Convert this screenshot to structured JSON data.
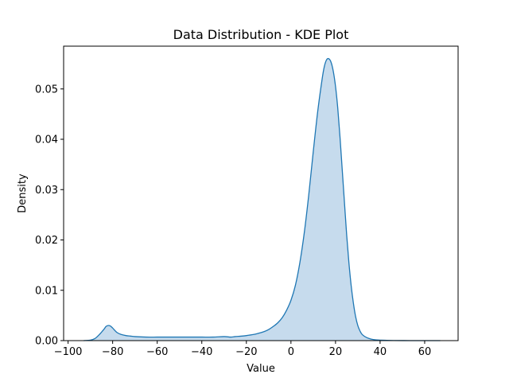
{
  "chart_data": {
    "type": "area",
    "title": "Data Distribution - KDE Plot",
    "xlabel": "Value",
    "ylabel": "Density",
    "xlim": [
      -102,
      75
    ],
    "ylim": [
      0,
      0.0585
    ],
    "xticks": [
      -100,
      -80,
      -60,
      -40,
      -20,
      0,
      20,
      40,
      60
    ],
    "xtick_labels": [
      "−100",
      "−80",
      "−60",
      "−40",
      "−20",
      "0",
      "20",
      "40",
      "60"
    ],
    "yticks": [
      0,
      0.01,
      0.02,
      0.03,
      0.04,
      0.05
    ],
    "ytick_labels": [
      "0.00",
      "0.01",
      "0.02",
      "0.03",
      "0.04",
      "0.05"
    ],
    "grid": false,
    "series": [
      {
        "line_color": "#1f77b4",
        "fill_color": "#c6dbed",
        "x": [
          -93,
          -90,
          -88,
          -86,
          -84,
          -83,
          -82,
          -81,
          -80,
          -78,
          -76,
          -74,
          -72,
          -70,
          -65,
          -60,
          -55,
          -50,
          -45,
          -40,
          -35,
          -30,
          -27,
          -25,
          -22,
          -20,
          -17,
          -15,
          -12,
          -10,
          -8,
          -6,
          -4,
          -2,
          0,
          2,
          4,
          6,
          8,
          10,
          12,
          14,
          15,
          16,
          17,
          18,
          19,
          20,
          21,
          22,
          23,
          24,
          25,
          26,
          27,
          28,
          29,
          30,
          31,
          32,
          34,
          36,
          38,
          40,
          43,
          46,
          50,
          55,
          60,
          67
        ],
        "y": [
          0.0,
          0.0001,
          0.0004,
          0.0012,
          0.0022,
          0.0028,
          0.003,
          0.0029,
          0.0025,
          0.0016,
          0.0012,
          0.001,
          0.0009,
          0.0008,
          0.0007,
          0.0007,
          0.0007,
          0.0007,
          0.0007,
          0.0007,
          0.0007,
          0.0008,
          0.0007,
          0.0008,
          0.0009,
          0.001,
          0.0012,
          0.0014,
          0.0018,
          0.0022,
          0.0028,
          0.0035,
          0.0045,
          0.006,
          0.008,
          0.011,
          0.0155,
          0.0215,
          0.029,
          0.0375,
          0.0455,
          0.052,
          0.0545,
          0.0558,
          0.056,
          0.0553,
          0.0535,
          0.0505,
          0.0462,
          0.0405,
          0.034,
          0.0275,
          0.021,
          0.0155,
          0.011,
          0.0075,
          0.0048,
          0.003,
          0.0019,
          0.0012,
          0.0006,
          0.0003,
          0.00015,
          0.0001,
          5e-05,
          2e-05,
          1e-05,
          0.0,
          0.0,
          0.0
        ]
      }
    ]
  }
}
